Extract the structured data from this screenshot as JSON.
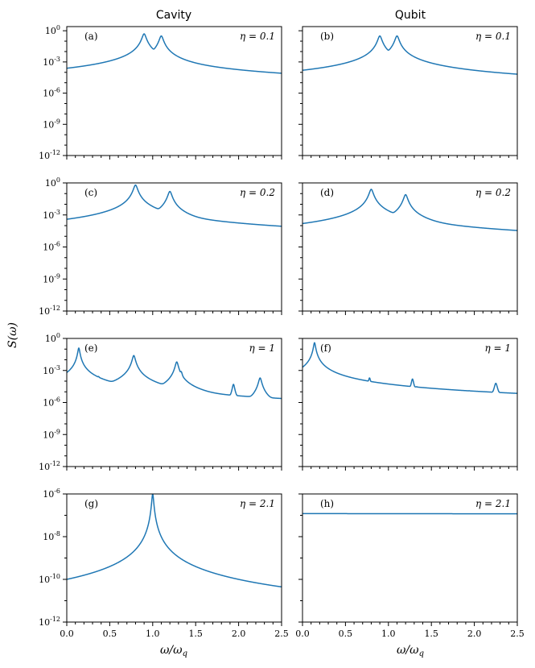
{
  "figure": {
    "col_titles": [
      "Cavity",
      "Qubit"
    ],
    "ylabel": "S(ω)",
    "xlabel": "ω/ω",
    "xlabel_sub": "q",
    "x_ticks": [
      "0.0",
      "0.5",
      "1.0",
      "1.5",
      "2.0",
      "2.5"
    ]
  },
  "chart_data": [
    {
      "type": "line",
      "panel": "(a)",
      "annotation": "η = 0.1",
      "title": "Cavity",
      "xlim": [
        0,
        2.5
      ],
      "yscale": "log",
      "ylim_exp": [
        -12,
        0.4
      ],
      "ytick_labels": [
        "10^0",
        "10^-3",
        "10^-6",
        "10^-9",
        "10^-12"
      ],
      "floor": {
        "x1": 0.0,
        "y1": -12.0,
        "x2": 0.25,
        "y2": -8.5,
        "x3": 0.75,
        "y3": -6.3,
        "xend": 2.5,
        "yend": -5.2,
        "sharp": 0.6
      },
      "peaks": [
        [
          0.9,
          -0.3,
          0.02
        ],
        [
          0.95,
          -2.4,
          0.012
        ],
        [
          0.76,
          -5.0,
          0.012
        ],
        [
          1.04,
          -3.2,
          0.012
        ],
        [
          1.1,
          -0.5,
          0.02
        ],
        [
          1.25,
          -5.5,
          0.01
        ]
      ]
    },
    {
      "type": "line",
      "panel": "(b)",
      "annotation": "η = 0.1",
      "title": "Qubit",
      "xlim": [
        0,
        2.5
      ],
      "yscale": "log",
      "ylim_exp": [
        -12,
        0.4
      ],
      "ytick_labels": [],
      "floor": {
        "x1": 0.0,
        "y1": -12.0,
        "x2": 0.25,
        "y2": -8.6,
        "x3": 0.7,
        "y3": -7.0,
        "xend": 2.5,
        "yend": -5.8,
        "sharp": 0.6
      },
      "peaks": [
        [
          0.9,
          -0.5,
          0.02
        ],
        [
          0.95,
          -3.3,
          0.012
        ],
        [
          0.76,
          -4.0,
          0.015
        ],
        [
          0.71,
          -5.6,
          0.008
        ],
        [
          1.04,
          -4.1,
          0.012
        ],
        [
          1.1,
          -0.5,
          0.02
        ],
        [
          1.25,
          -4.0,
          0.015
        ]
      ]
    },
    {
      "type": "line",
      "panel": "(c)",
      "annotation": "η = 0.2",
      "title": "",
      "xlim": [
        0,
        2.5
      ],
      "yscale": "log",
      "ylim_exp": [
        -12,
        0
      ],
      "ytick_labels": [
        "10^0",
        "10^-3",
        "10^-6",
        "10^-9",
        "10^-12"
      ],
      "floor": {
        "x1": 0.0,
        "y1": -12.0,
        "x2": 0.25,
        "y2": -8.8,
        "x3": 0.52,
        "y3": -6.9,
        "xend": 2.5,
        "yend": -5.4,
        "sharp": 0.6
      },
      "peaks": [
        [
          0.8,
          -0.2,
          0.02
        ],
        [
          0.52,
          -4.4,
          0.015
        ],
        [
          0.92,
          -2.5,
          0.015
        ],
        [
          1.08,
          -3.1,
          0.015
        ],
        [
          1.2,
          -0.8,
          0.02
        ],
        [
          1.48,
          -4.7,
          0.012
        ]
      ]
    },
    {
      "type": "line",
      "panel": "(d)",
      "annotation": "η = 0.2",
      "title": "",
      "xlim": [
        0,
        2.5
      ],
      "yscale": "log",
      "ylim_exp": [
        -12,
        0
      ],
      "ytick_labels": [],
      "floor": {
        "x1": 0.0,
        "y1": -12.0,
        "x2": 0.25,
        "y2": -9.0,
        "x3": 0.6,
        "y3": -7.3,
        "xend": 2.5,
        "yend": -6.1,
        "sharp": 0.6
      },
      "peaks": [
        [
          0.8,
          -0.6,
          0.02
        ],
        [
          0.38,
          -6.7,
          0.008
        ],
        [
          0.52,
          -4.6,
          0.015
        ],
        [
          0.92,
          -3.4,
          0.012
        ],
        [
          1.08,
          -3.8,
          0.012
        ],
        [
          1.2,
          -1.1,
          0.02
        ],
        [
          1.48,
          -4.8,
          0.012
        ],
        [
          1.64,
          -6.7,
          0.006
        ]
      ]
    },
    {
      "type": "line",
      "panel": "(e)",
      "annotation": "η = 1",
      "title": "",
      "xlim": [
        0,
        2.5
      ],
      "yscale": "log",
      "ylim_exp": [
        -12,
        0
      ],
      "ytick_labels": [
        "10^0",
        "10^-3",
        "10^-6",
        "10^-9",
        "10^-12"
      ],
      "floor": {
        "x1": 0.0,
        "y1": -12.0,
        "x2": 0.12,
        "y2": -7.2,
        "x3": 0.5,
        "y3": -6.4,
        "xend": 2.5,
        "yend": -7.0,
        "sharp": 0.3
      },
      "peaks": [
        [
          0.14,
          -0.9,
          0.01
        ],
        [
          0.29,
          -6.0,
          0.006
        ],
        [
          0.37,
          -3.6,
          0.012
        ],
        [
          0.78,
          -1.6,
          0.015
        ],
        [
          0.8,
          -3.5,
          0.008
        ],
        [
          0.92,
          -4.6,
          0.012
        ],
        [
          1.05,
          -5.5,
          0.01
        ],
        [
          1.1,
          -5.2,
          0.01
        ],
        [
          1.28,
          -2.2,
          0.015
        ],
        [
          1.33,
          -3.1,
          0.015
        ],
        [
          1.84,
          -6.4,
          0.006
        ],
        [
          1.94,
          -4.3,
          0.012
        ],
        [
          2.0,
          -5.6,
          0.008
        ],
        [
          2.06,
          -5.6,
          0.008
        ],
        [
          2.25,
          -3.7,
          0.015
        ]
      ]
    },
    {
      "type": "line",
      "panel": "(f)",
      "annotation": "η = 1",
      "title": "",
      "xlim": [
        0,
        2.5
      ],
      "yscale": "log",
      "ylim_exp": [
        -12,
        0
      ],
      "ytick_labels": [],
      "floor": {
        "x1": 0.0,
        "y1": -12.0,
        "x2": 0.1,
        "y2": -8.0,
        "x3": 0.45,
        "y3": -6.9,
        "xend": 2.5,
        "yend": -7.0,
        "sharp": 0.3
      },
      "peaks": [
        [
          0.14,
          -0.4,
          0.01
        ],
        [
          0.18,
          -4.6,
          0.01
        ],
        [
          0.37,
          -3.8,
          0.012
        ],
        [
          0.78,
          -3.7,
          0.012
        ],
        [
          0.8,
          -5.2,
          0.008
        ],
        [
          1.28,
          -3.8,
          0.012
        ],
        [
          1.33,
          -4.6,
          0.012
        ],
        [
          1.94,
          -5.0,
          0.01
        ],
        [
          2.0,
          -6.4,
          0.006
        ],
        [
          2.06,
          -6.4,
          0.006
        ],
        [
          2.25,
          -4.2,
          0.015
        ]
      ]
    },
    {
      "type": "line",
      "panel": "(g)",
      "annotation": "η = 2.1",
      "title": "",
      "xlim": [
        0,
        2.5
      ],
      "yscale": "log",
      "ylim_exp": [
        -12,
        -6
      ],
      "ytick_labels": [
        "10^-6",
        "10^-8",
        "10^-10",
        "10^-12"
      ],
      "floor": {
        "x1": 0.45,
        "y1": -12.1,
        "x2": 0.8,
        "y2": -10.2,
        "x3": 1.2,
        "y3": -10.8,
        "xend": 2.5,
        "yend": -11.8,
        "sharp": 0.0,
        "decay": true
      },
      "peaks": [
        [
          0.17,
          -11.6,
          0.005
        ],
        [
          0.87,
          -9.0,
          0.012
        ],
        [
          0.95,
          -8.0,
          0.012
        ],
        [
          0.98,
          -7.3,
          0.01
        ],
        [
          1.0,
          -6.0,
          0.01
        ],
        [
          1.02,
          -7.7,
          0.01
        ],
        [
          1.04,
          -8.1,
          0.01
        ],
        [
          1.12,
          -9.2,
          0.012
        ],
        [
          1.88,
          -11.0,
          0.008
        ],
        [
          1.96,
          -11.2,
          0.006
        ],
        [
          2.0,
          -11.3,
          0.006
        ],
        [
          2.08,
          -11.4,
          0.006
        ]
      ]
    },
    {
      "type": "line",
      "panel": "(h)",
      "annotation": "η = 2.1",
      "title": "",
      "xlim": [
        0,
        2.5
      ],
      "yscale": "log",
      "ylim_exp": [
        -12,
        -6
      ],
      "ytick_labels": [],
      "floor": {
        "x1": 0.0,
        "y1": -6.92,
        "x2": 1.0,
        "y2": -6.92,
        "x3": 2.0,
        "y3": -6.93,
        "xend": 2.5,
        "yend": -6.93,
        "sharp": 0.0,
        "flat": true
      },
      "peaks": []
    }
  ]
}
